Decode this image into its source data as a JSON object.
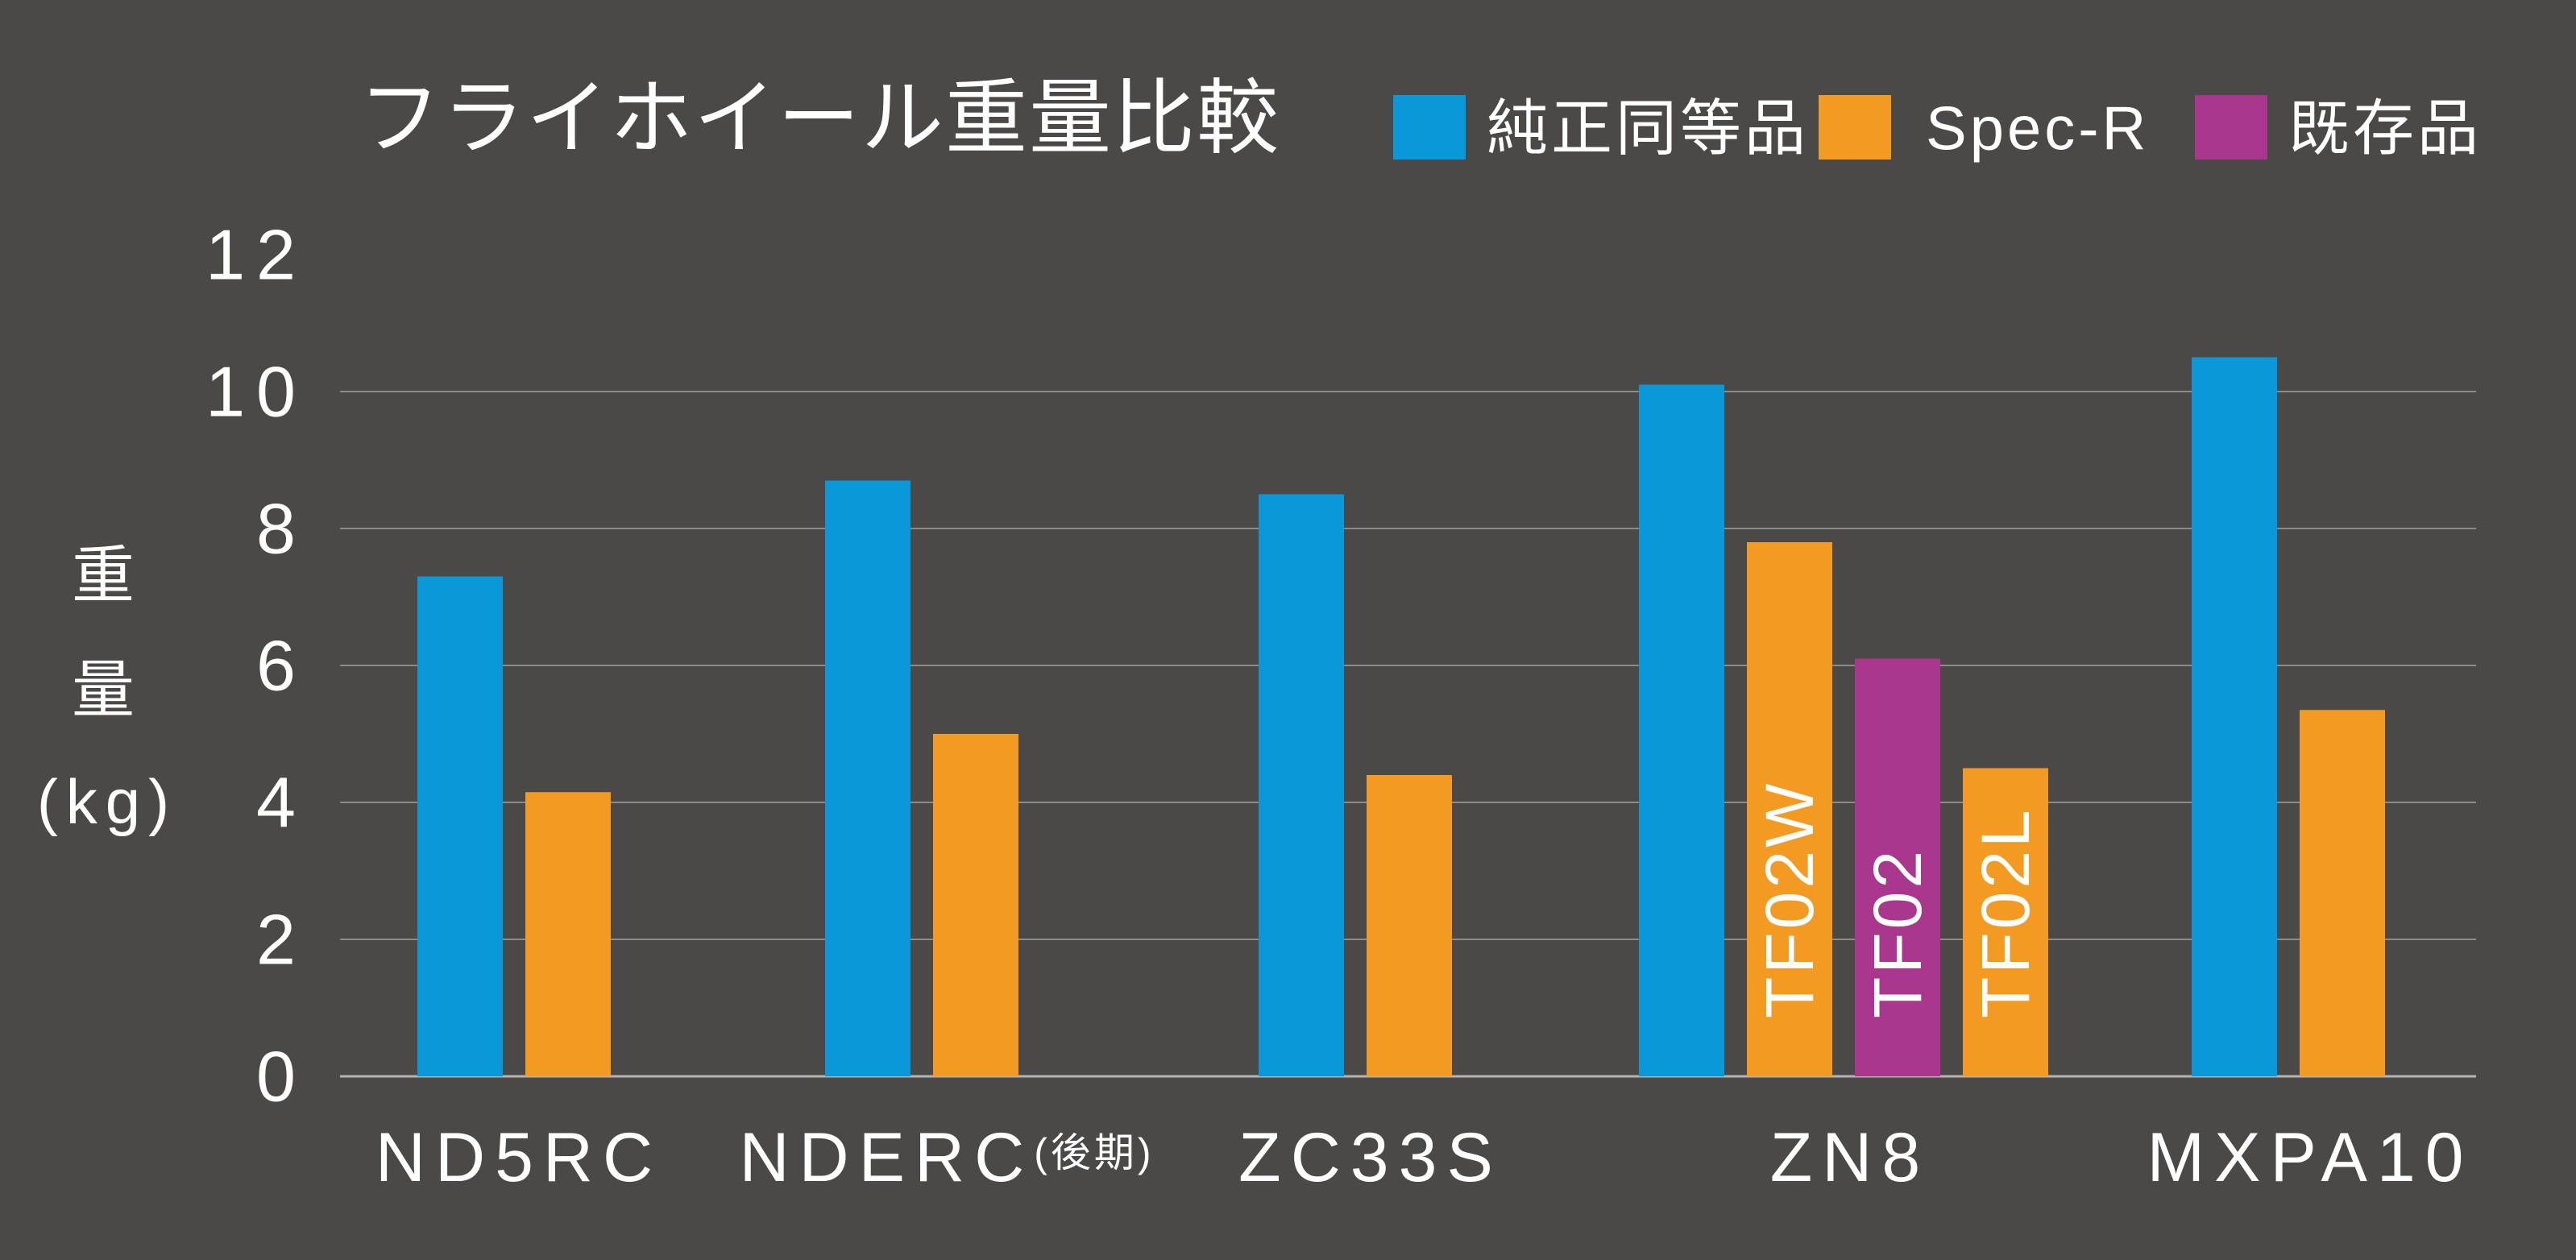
{
  "background": "#4b4947",
  "chart_data": {
    "type": "bar",
    "title": "フライホイール重量比較",
    "xlabel": "",
    "ylabel_lines": [
      "重",
      "量",
      "(kg)"
    ],
    "ylim": [
      0,
      12
    ],
    "yticks": [
      0,
      2,
      4,
      6,
      8,
      10,
      12
    ],
    "grid": true,
    "legend_position": "top-right",
    "series": [
      {
        "name": "純正同等品",
        "color": "#0998d8"
      },
      {
        "name": "Spec-R",
        "color": "#f39a22"
      },
      {
        "name": "既存品",
        "color": "#a8378d"
      }
    ],
    "groups": [
      {
        "category": "ND5RC",
        "bars": [
          {
            "series_index": 0,
            "value": 7.3
          },
          {
            "series_index": 1,
            "value": 4.15
          }
        ]
      },
      {
        "category": "NDERC(後期)",
        "bars": [
          {
            "series_index": 0,
            "value": 8.7
          },
          {
            "series_index": 1,
            "value": 5.0
          }
        ]
      },
      {
        "category": "ZC33S",
        "bars": [
          {
            "series_index": 0,
            "value": 8.5
          },
          {
            "series_index": 1,
            "value": 4.4
          }
        ]
      },
      {
        "category": "ZN8",
        "bars": [
          {
            "series_index": 0,
            "value": 10.1
          },
          {
            "series_index": 1,
            "value": 7.8,
            "label": "TF02W"
          },
          {
            "series_index": 2,
            "value": 6.1,
            "label": "TF02"
          },
          {
            "series_index": 1,
            "value": 4.5,
            "label": "TF02L"
          }
        ]
      },
      {
        "category": "MXPA10",
        "bars": [
          {
            "series_index": 0,
            "value": 10.5
          },
          {
            "series_index": 1,
            "value": 5.35
          }
        ]
      }
    ]
  }
}
